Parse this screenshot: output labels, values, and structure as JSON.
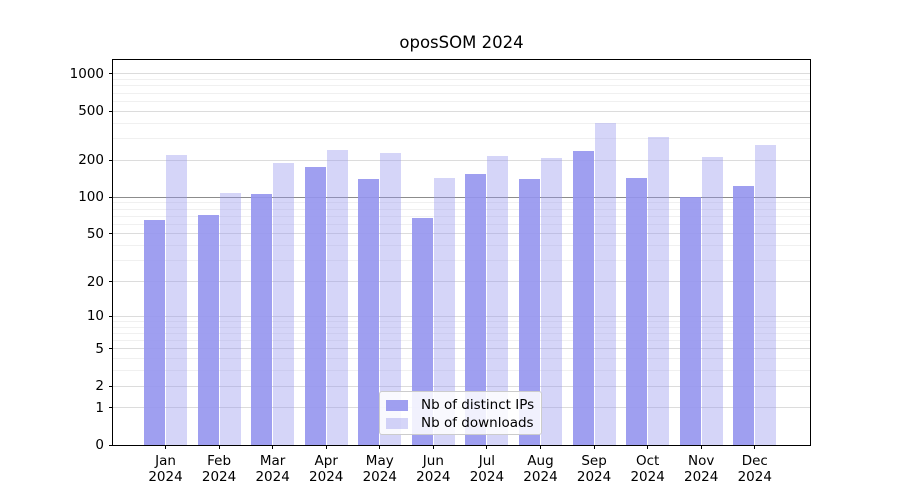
{
  "title": "oposSOM 2024",
  "chart_data": {
    "type": "bar",
    "title": "oposSOM 2024",
    "y_scale": "log1p",
    "grid": "on",
    "categories": [
      "Jan",
      "Feb",
      "Mar",
      "Apr",
      "May",
      "Jun",
      "Jul",
      "Aug",
      "Sep",
      "Oct",
      "Nov",
      "Dec"
    ],
    "category_year": "2024",
    "series": [
      {
        "name": "Nb of distinct IPs",
        "color": "#a0a0f0",
        "values": [
          65,
          72,
          106,
          175,
          141,
          68,
          155,
          140,
          240,
          144,
          101,
          124
        ]
      },
      {
        "name": "Nb of downloads",
        "color": "#d8d8f8",
        "values": [
          219,
          109,
          189,
          242,
          228,
          144,
          216,
          208,
          404,
          311,
          214,
          267
        ]
      }
    ],
    "y_ticks": [
      0,
      1,
      2,
      5,
      10,
      20,
      50,
      100,
      200,
      500,
      1000
    ],
    "y_minor_gridlines": [
      3,
      4,
      6,
      7,
      8,
      9,
      30,
      40,
      60,
      70,
      80,
      90,
      300,
      400,
      600,
      700,
      800,
      900
    ],
    "emphasized_gridline": 100,
    "ylim": [
      0,
      1300
    ],
    "legend_position": "bottom-center",
    "legend": [
      "Nb of distinct IPs",
      "Nb of downloads"
    ]
  },
  "colors": {
    "bar_base": "#9595ee",
    "bar_dark_alpha": 0.9,
    "bar_light_alpha": 0.4,
    "grid_major": "#dcdcdc",
    "grid_minor": "#f0f0f0",
    "grid_emphasis": "#8c8c8c",
    "axis": "#000000",
    "legend_border": "#cccccc",
    "background": "#ffffff"
  }
}
